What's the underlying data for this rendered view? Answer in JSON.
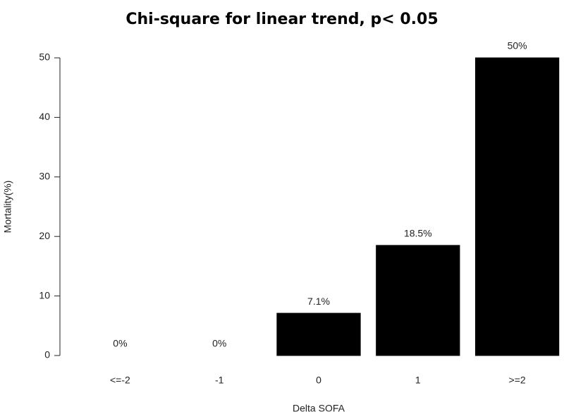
{
  "chart_data": {
    "type": "bar",
    "title": "Chi-square for linear trend, p< 0.05",
    "x_label": "Delta SOFA",
    "y_label": "Mortality(%)",
    "categories": [
      "<=-2",
      "-1",
      "0",
      "1",
      ">=2"
    ],
    "values": [
      0,
      0,
      7.1,
      18.5,
      50
    ],
    "value_labels": [
      "0%",
      "0%",
      "7.1%",
      "18.5%",
      "50%"
    ],
    "color": "#000000",
    "ylim": [
      0,
      50
    ],
    "yticks": [
      0,
      10,
      20,
      30,
      40,
      50
    ],
    "grid": false
  }
}
